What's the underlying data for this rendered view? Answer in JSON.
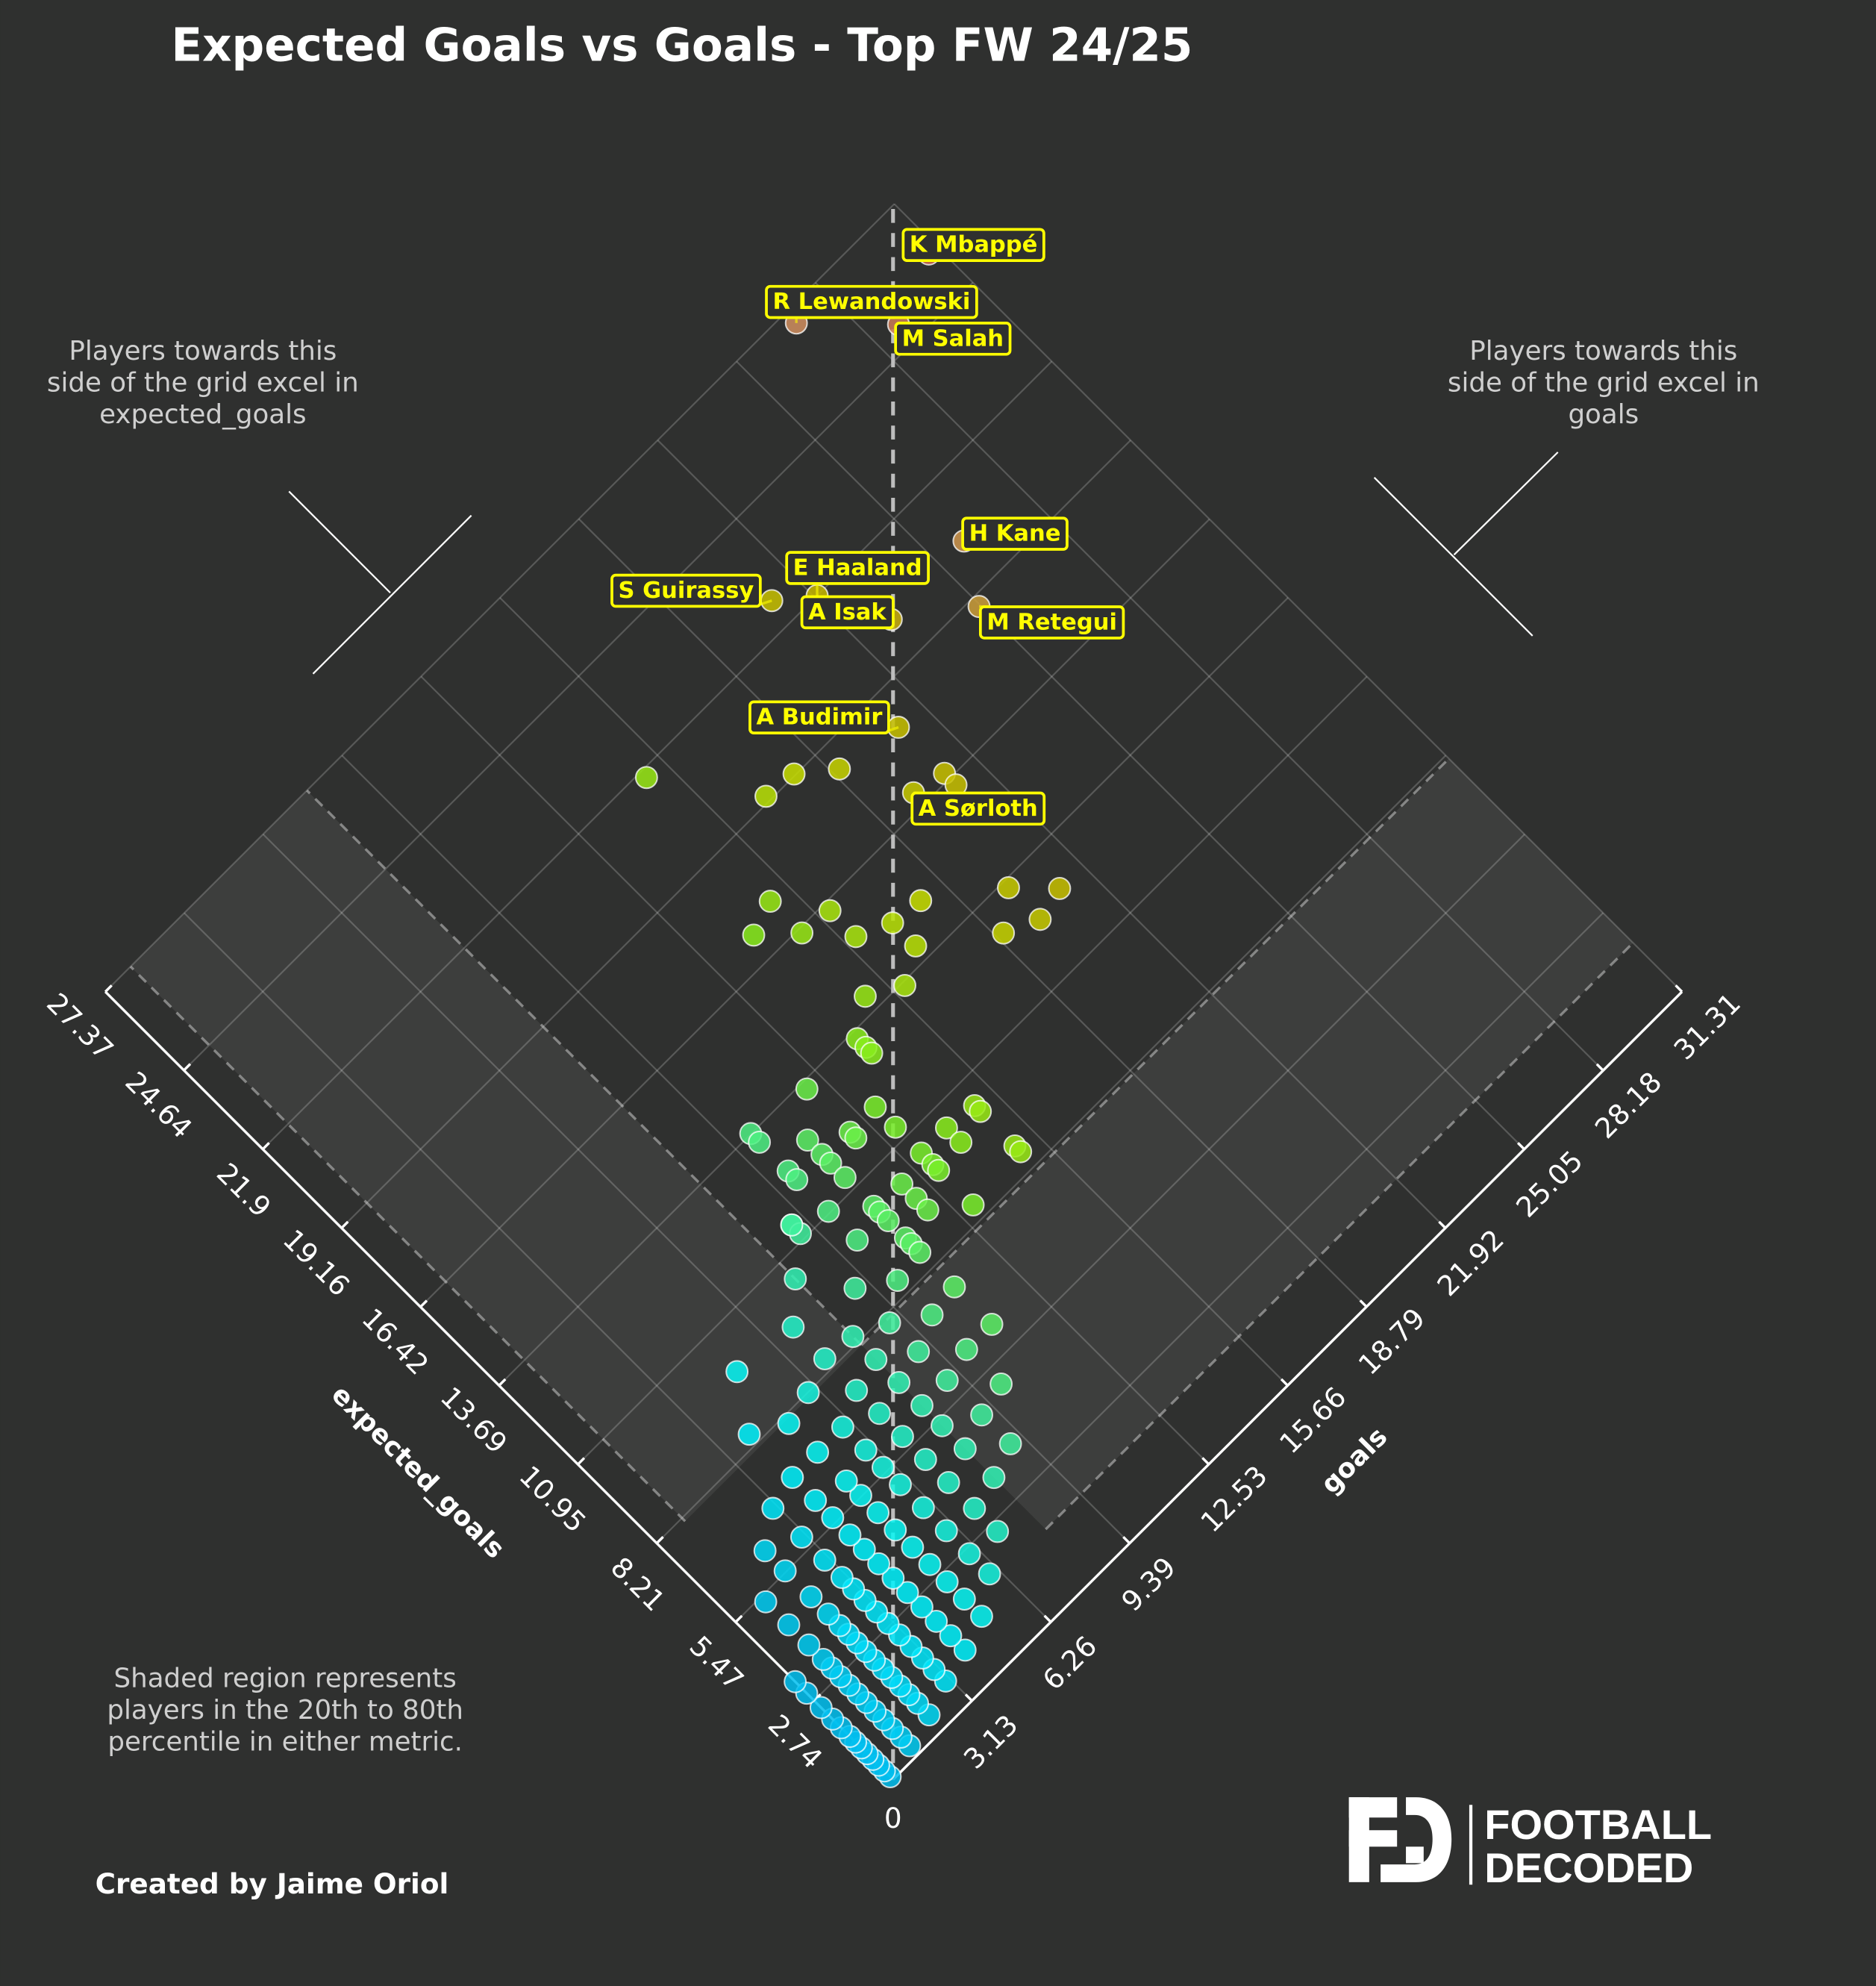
{
  "title": "Expected Goals vs Goals - Top FW 24/25",
  "annotations": {
    "left_lines": [
      "Players towards this",
      "side of the grid excel in",
      "expected_goals"
    ],
    "right_lines": [
      "Players towards this",
      "side of the grid excel in",
      "goals"
    ],
    "shaded_lines": [
      "Shaded region represents",
      "players in the 20th to 80th",
      "percentile in either metric."
    ],
    "credit": "Created by Jaime Oriol"
  },
  "logo": {
    "line1": "FOOTBALL",
    "line2": "DECODED",
    "mark": "FD"
  },
  "colors": {
    "background": "#2f302f",
    "label_text": "#ffff00",
    "colormap": [
      "#00c0f0",
      "#00f8ff",
      "#3ef0a0",
      "#80f020",
      "#c8e000",
      "#c8b400",
      "#d09060",
      "#c86450"
    ]
  },
  "chart_data": {
    "type": "scatter",
    "title": "Expected Goals vs Goals - Top FW 24/25",
    "xlabel": "expected_goals",
    "ylabel": "goals",
    "x_ticks": [
      "2.74",
      "5.47",
      "8.21",
      "10.95",
      "13.69",
      "16.42",
      "19.16",
      "21.9",
      "24.64",
      "27.37"
    ],
    "y_ticks": [
      "3.13",
      "6.26",
      "9.39",
      "12.53",
      "15.66",
      "18.79",
      "21.92",
      "25.05",
      "28.18",
      "31.31"
    ],
    "origin_label": "0",
    "xlim": [
      0,
      27.37
    ],
    "ylim": [
      0,
      31.31
    ],
    "grid": true,
    "layout": "diamond (x axis lower-left, y axis lower-right)",
    "percentile_band": {
      "low": 20,
      "high": 80,
      "xg_range": [
        1.7,
        8.1
      ],
      "goals_range": [
        1,
        8
      ]
    },
    "labelled_players": [
      {
        "name": "K Mbappé",
        "xg": 25.9,
        "goals": 31
      },
      {
        "name": "R Lewandowski",
        "xg": 27.0,
        "goals": 27
      },
      {
        "name": "M Salah",
        "xg": 25.2,
        "goals": 29
      },
      {
        "name": "H Kane",
        "xg": 20.3,
        "goals": 26
      },
      {
        "name": "E Haaland",
        "xg": 21.9,
        "goals": 22
      },
      {
        "name": "S Guirassy",
        "xg": 22.6,
        "goals": 21
      },
      {
        "name": "A Isak",
        "xg": 20.2,
        "goals": 23
      },
      {
        "name": "M Retegui",
        "xg": 18.9,
        "goals": 25
      },
      {
        "name": "A Budimir",
        "xg": 18.2,
        "goals": 21
      },
      {
        "name": "A Sørloth",
        "xg": 16.8,
        "goals": 20
      }
    ],
    "points": [
      [
        21.7,
        15
      ],
      [
        19.3,
        17
      ],
      [
        19.2,
        18
      ],
      [
        18.5,
        19
      ],
      [
        16.6,
        21
      ],
      [
        16.2,
        21
      ],
      [
        13.5,
        20
      ],
      [
        12.6,
        21
      ],
      [
        12.4,
        20
      ],
      [
        12.8,
        19
      ],
      [
        17.4,
        15
      ],
      [
        17.1,
        14
      ],
      [
        16.3,
        15
      ],
      [
        16.2,
        16
      ],
      [
        15.3,
        16
      ],
      [
        14.9,
        17
      ],
      [
        14.8,
        18
      ],
      [
        14.1,
        17
      ],
      [
        13.6,
        16
      ],
      [
        14.1,
        15
      ],
      [
        13.5,
        14
      ],
      [
        13.2,
        14
      ],
      [
        13.0,
        14
      ],
      [
        13.5,
        12
      ],
      [
        12.0,
        13
      ],
      [
        11.3,
        13
      ],
      [
        10.3,
        15
      ],
      [
        10.1,
        15
      ],
      [
        10.4,
        14
      ],
      [
        9.9,
        14
      ],
      [
        8.9,
        15
      ],
      [
        8.7,
        15
      ],
      [
        13.7,
        10
      ],
      [
        13.4,
        10
      ],
      [
        12.6,
        11
      ],
      [
        12.0,
        12
      ],
      [
        11.8,
        12
      ],
      [
        12.4,
        10
      ],
      [
        12.1,
        10
      ],
      [
        12.1,
        11
      ],
      [
        11.8,
        11
      ],
      [
        10.4,
        13
      ],
      [
        10.0,
        13
      ],
      [
        9.8,
        13
      ],
      [
        8.6,
        13
      ],
      [
        10.2,
        12
      ],
      [
        9.7,
        12
      ],
      [
        10.3,
        11
      ],
      [
        10.1,
        11
      ],
      [
        9.3,
        12
      ],
      [
        11.4,
        9
      ],
      [
        11.1,
        9
      ],
      [
        9.2,
        11
      ],
      [
        9.0,
        11
      ],
      [
        5.0,
        10
      ],
      [
        6.2,
        10
      ],
      [
        7.4,
        10
      ],
      [
        8.6,
        10
      ],
      [
        10.0,
        10
      ],
      [
        11.0,
        10
      ],
      [
        6.2,
        11
      ],
      [
        7.5,
        11
      ],
      [
        8.7,
        11
      ],
      [
        9.8,
        11
      ],
      [
        11.3,
        11
      ],
      [
        3.8,
        9
      ],
      [
        4.8,
        9
      ],
      [
        6.0,
        9
      ],
      [
        7.0,
        9
      ],
      [
        8.0,
        9
      ],
      [
        9.2,
        9
      ],
      [
        11.4,
        9
      ],
      [
        3.5,
        8
      ],
      [
        4.5,
        8
      ],
      [
        5.3,
        8
      ],
      [
        6.0,
        8
      ],
      [
        6.8,
        8
      ],
      [
        7.6,
        8
      ],
      [
        8.4,
        8
      ],
      [
        10.4,
        8
      ],
      [
        2.5,
        7
      ],
      [
        3.3,
        7
      ],
      [
        4.2,
        7
      ],
      [
        5.0,
        7
      ],
      [
        5.8,
        7
      ],
      [
        6.6,
        7
      ],
      [
        7.4,
        7
      ],
      [
        8.5,
        7
      ],
      [
        9.6,
        7
      ],
      [
        1.9,
        6
      ],
      [
        2.6,
        6
      ],
      [
        3.4,
        6
      ],
      [
        4.2,
        6
      ],
      [
        5.0,
        6
      ],
      [
        5.6,
        6
      ],
      [
        6.2,
        6
      ],
      [
        7.0,
        6
      ],
      [
        8.2,
        6
      ],
      [
        1.3,
        5
      ],
      [
        1.9,
        5
      ],
      [
        2.5,
        5
      ],
      [
        3.1,
        5
      ],
      [
        3.7,
        5
      ],
      [
        4.3,
        5
      ],
      [
        4.9,
        5
      ],
      [
        5.5,
        5
      ],
      [
        6.0,
        5
      ],
      [
        7.0,
        5
      ],
      [
        8.0,
        5
      ],
      [
        9.8,
        5
      ],
      [
        1.0,
        4
      ],
      [
        1.5,
        4
      ],
      [
        2.0,
        4
      ],
      [
        2.5,
        4
      ],
      [
        3.0,
        4
      ],
      [
        3.5,
        4
      ],
      [
        4.0,
        4
      ],
      [
        4.5,
        4
      ],
      [
        5.0,
        4
      ],
      [
        5.6,
        4
      ],
      [
        6.2,
        4
      ],
      [
        7.0,
        4
      ],
      [
        8.5,
        4
      ],
      [
        0.8,
        3
      ],
      [
        1.2,
        3
      ],
      [
        1.6,
        3
      ],
      [
        2.0,
        3
      ],
      [
        2.4,
        3
      ],
      [
        2.8,
        3
      ],
      [
        3.2,
        3
      ],
      [
        3.6,
        3
      ],
      [
        4.0,
        3
      ],
      [
        4.4,
        3
      ],
      [
        5.0,
        3
      ],
      [
        5.8,
        3
      ],
      [
        6.8,
        3
      ],
      [
        0.5,
        2
      ],
      [
        0.9,
        2
      ],
      [
        1.2,
        2
      ],
      [
        1.5,
        2
      ],
      [
        1.8,
        2
      ],
      [
        2.1,
        2
      ],
      [
        2.4,
        2
      ],
      [
        2.7,
        2
      ],
      [
        3.0,
        2
      ],
      [
        3.3,
        2
      ],
      [
        3.6,
        2
      ],
      [
        4.0,
        2
      ],
      [
        4.6,
        2
      ],
      [
        5.5,
        2
      ],
      [
        6.2,
        2
      ],
      [
        0.3,
        1
      ],
      [
        0.6,
        1
      ],
      [
        0.9,
        1
      ],
      [
        1.2,
        1
      ],
      [
        1.5,
        1
      ],
      [
        1.8,
        1
      ],
      [
        2.1,
        1
      ],
      [
        2.4,
        1
      ],
      [
        2.7,
        1
      ],
      [
        3.0,
        1
      ],
      [
        3.3,
        1
      ],
      [
        3.8,
        1
      ],
      [
        4.5,
        1
      ],
      [
        5.3,
        1
      ],
      [
        0.1,
        0
      ],
      [
        0.3,
        0
      ],
      [
        0.5,
        0
      ],
      [
        0.7,
        0
      ],
      [
        0.9,
        0
      ],
      [
        1.1,
        0
      ],
      [
        1.3,
        0
      ],
      [
        1.5,
        0
      ],
      [
        1.8,
        0
      ],
      [
        2.1,
        0
      ],
      [
        2.5,
        0
      ],
      [
        3.0,
        0
      ],
      [
        3.4,
        0
      ]
    ]
  }
}
